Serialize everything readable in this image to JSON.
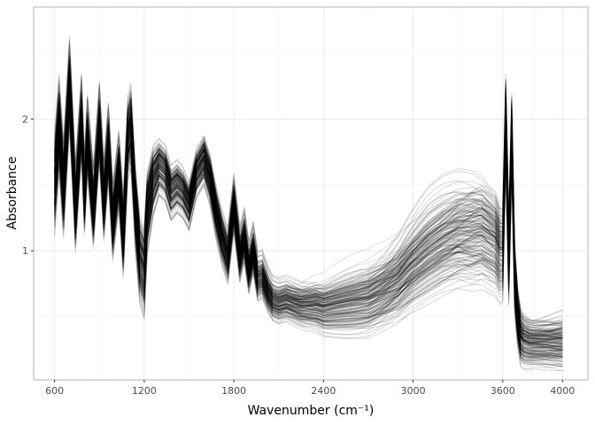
{
  "chart_data": {
    "type": "line",
    "title": "",
    "xlabel": "Wavenumber (cm⁻¹)",
    "ylabel": "Absorbance",
    "xlim": [
      460,
      4170
    ],
    "ylim": [
      0.02,
      2.85
    ],
    "x_ticks": [
      600,
      1200,
      1800,
      2400,
      3000,
      3600,
      4000
    ],
    "x_tick_labels": [
      "600",
      "1200",
      "1800",
      "2400",
      "3000",
      "3600",
      "4000"
    ],
    "y_ticks": [
      1,
      2
    ],
    "y_tick_labels": [
      "1",
      "2"
    ],
    "grid": true,
    "legend": "none",
    "line_color": "#000000",
    "series_count": 180,
    "mean_spectrum": {
      "x": [
        600,
        630,
        660,
        700,
        740,
        780,
        800,
        820,
        860,
        900,
        930,
        960,
        990,
        1030,
        1060,
        1090,
        1110,
        1140,
        1170,
        1200,
        1220,
        1260,
        1300,
        1340,
        1380,
        1420,
        1460,
        1500,
        1550,
        1600,
        1640,
        1680,
        1720,
        1760,
        1800,
        1840,
        1870,
        1900,
        1930,
        1960,
        1990,
        2030,
        2060,
        2100,
        2150,
        2200,
        2250,
        2300,
        2350,
        2400,
        2500,
        2600,
        2700,
        2800,
        2900,
        3000,
        3100,
        3200,
        3300,
        3400,
        3460,
        3500,
        3550,
        3580,
        3600,
        3620,
        3640,
        3660,
        3680,
        3700,
        3720,
        3740,
        3780,
        3820,
        3860,
        3900,
        3950,
        4000
      ],
      "y": [
        1.5,
        1.95,
        1.45,
        2.25,
        1.3,
        2.0,
        1.4,
        1.85,
        1.3,
        1.95,
        1.35,
        1.8,
        1.2,
        1.6,
        1.1,
        1.85,
        1.95,
        1.35,
        0.95,
        0.85,
        1.3,
        1.55,
        1.65,
        1.6,
        1.45,
        1.5,
        1.45,
        1.35,
        1.6,
        1.7,
        1.55,
        1.3,
        1.1,
        0.95,
        1.35,
        0.95,
        1.1,
        0.85,
        1.0,
        0.78,
        0.8,
        0.68,
        0.62,
        0.6,
        0.62,
        0.6,
        0.58,
        0.58,
        0.58,
        0.56,
        0.58,
        0.6,
        0.62,
        0.68,
        0.76,
        0.88,
        0.98,
        1.06,
        1.12,
        1.14,
        1.15,
        1.12,
        1.08,
        1.0,
        1.0,
        2.0,
        0.95,
        1.9,
        0.8,
        0.5,
        0.35,
        0.32,
        0.3,
        0.3,
        0.3,
        0.3,
        0.3,
        0.3
      ]
    },
    "spread": {
      "x": [
        600,
        800,
        1000,
        1200,
        1300,
        1500,
        1700,
        1800,
        1950,
        2050,
        2400,
        2800,
        3100,
        3400,
        3550,
        3650,
        3700,
        3800,
        4000
      ],
      "y": [
        0.22,
        0.16,
        0.16,
        0.2,
        0.12,
        0.1,
        0.12,
        0.12,
        0.1,
        0.09,
        0.11,
        0.16,
        0.22,
        0.25,
        0.22,
        0.18,
        0.12,
        0.1,
        0.12
      ]
    }
  }
}
